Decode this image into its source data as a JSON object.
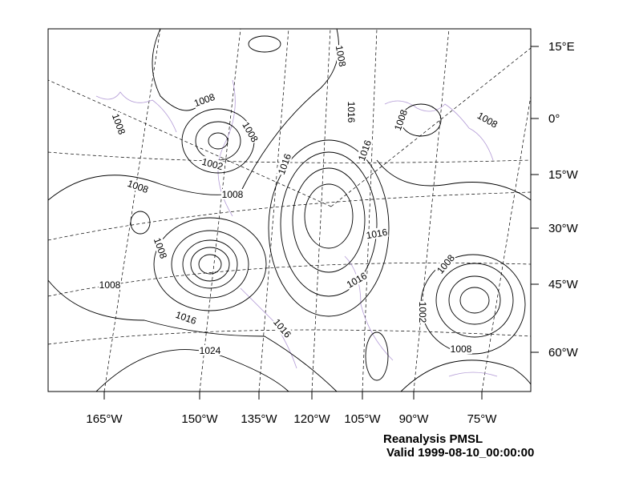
{
  "map": {
    "title": "Reanalysis PMSL",
    "subtitle": "Valid 1999-08-10_00:00:00",
    "right_labels": [
      "15°E",
      "0°",
      "15°W",
      "30°W",
      "45°W",
      "60°W"
    ],
    "bottom_labels": [
      "165°W",
      "150°W",
      "135°W",
      "120°W",
      "105°W",
      "90°W",
      "75°W"
    ],
    "contour_labels": [
      1008,
      1008,
      1008,
      1002,
      1008,
      1008,
      1016,
      1016,
      1016,
      1008,
      1008,
      1016,
      1008,
      1008,
      1016,
      1008,
      1002,
      1008,
      1016,
      1016,
      1024,
      1008
    ]
  }
}
